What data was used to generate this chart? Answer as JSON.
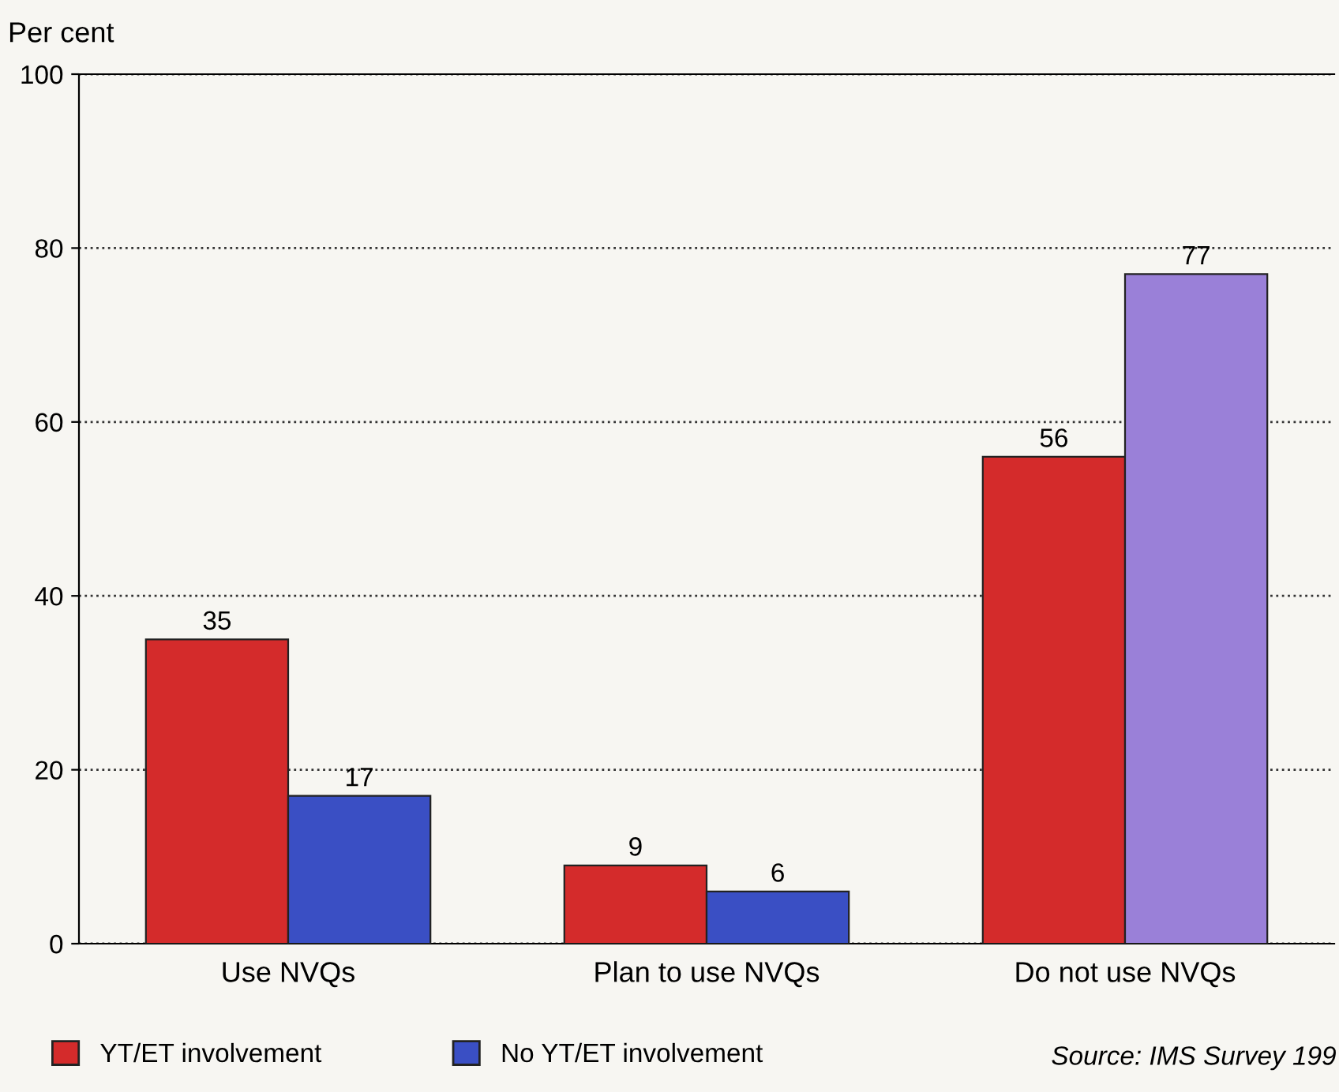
{
  "chart_data": {
    "type": "bar",
    "ylabel": "Per cent",
    "categories": [
      "Use NVQs",
      "Plan to use NVQs",
      "Do not use NVQs"
    ],
    "series": [
      {
        "name": "YT/ET involvement",
        "color": "#d42b2b",
        "values": [
          35,
          9,
          56
        ]
      },
      {
        "name": "No YT/ET involvement",
        "color": "#3a4fc4",
        "colors": [
          "#3a4fc4",
          "#3a4fc4",
          "#9a80d8"
        ],
        "values": [
          17,
          6,
          77
        ]
      }
    ],
    "ylim": [
      0,
      100
    ],
    "yticks": [
      0,
      20,
      40,
      60,
      80,
      100
    ],
    "grid": "y",
    "data_labels": true,
    "legend": "bottom left",
    "annotations": [
      "Source: IMS Survey 199"
    ]
  }
}
